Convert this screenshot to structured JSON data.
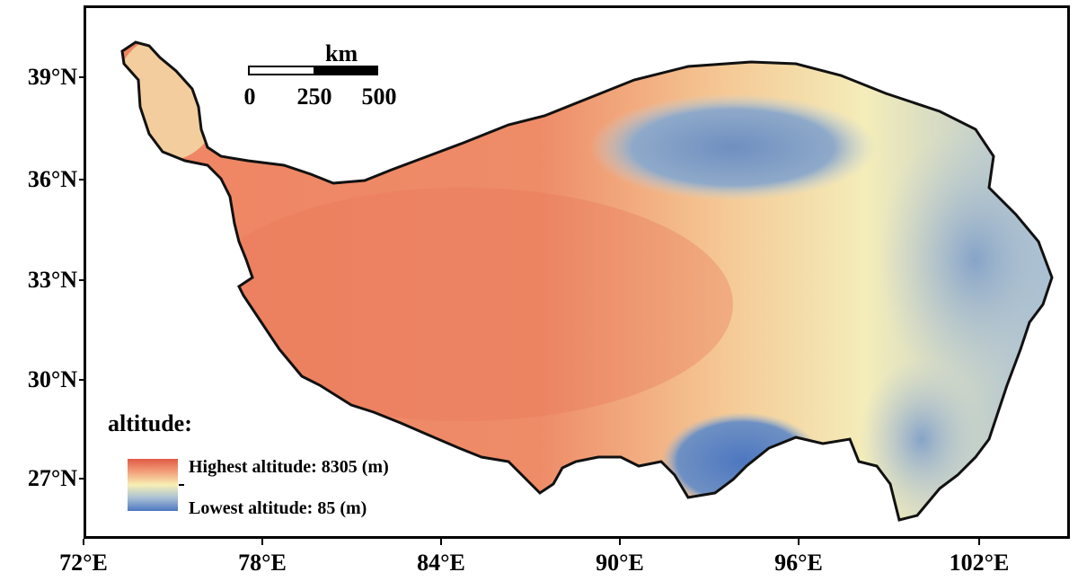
{
  "scale_bar": {
    "unit": "km",
    "labels": [
      "0",
      "250",
      "500"
    ]
  },
  "legend": {
    "title": "altitude:",
    "high_label": "Highest altitude: 8305 (m)",
    "low_label": "Lowest altitude: 85 (m)",
    "colors": {
      "high": "#e05a45",
      "mid_high": "#f3a07a",
      "mid": "#f7efb5",
      "mid_low": "#a9c0d5",
      "low": "#4d77c0"
    }
  },
  "axes": {
    "latitude_labels": [
      "39°N",
      "36°N",
      "33°N",
      "30°N",
      "27°N"
    ],
    "longitude_labels": [
      "72°E",
      "78°E",
      "84°E",
      "90°E",
      "96°E",
      "102°E"
    ]
  }
}
